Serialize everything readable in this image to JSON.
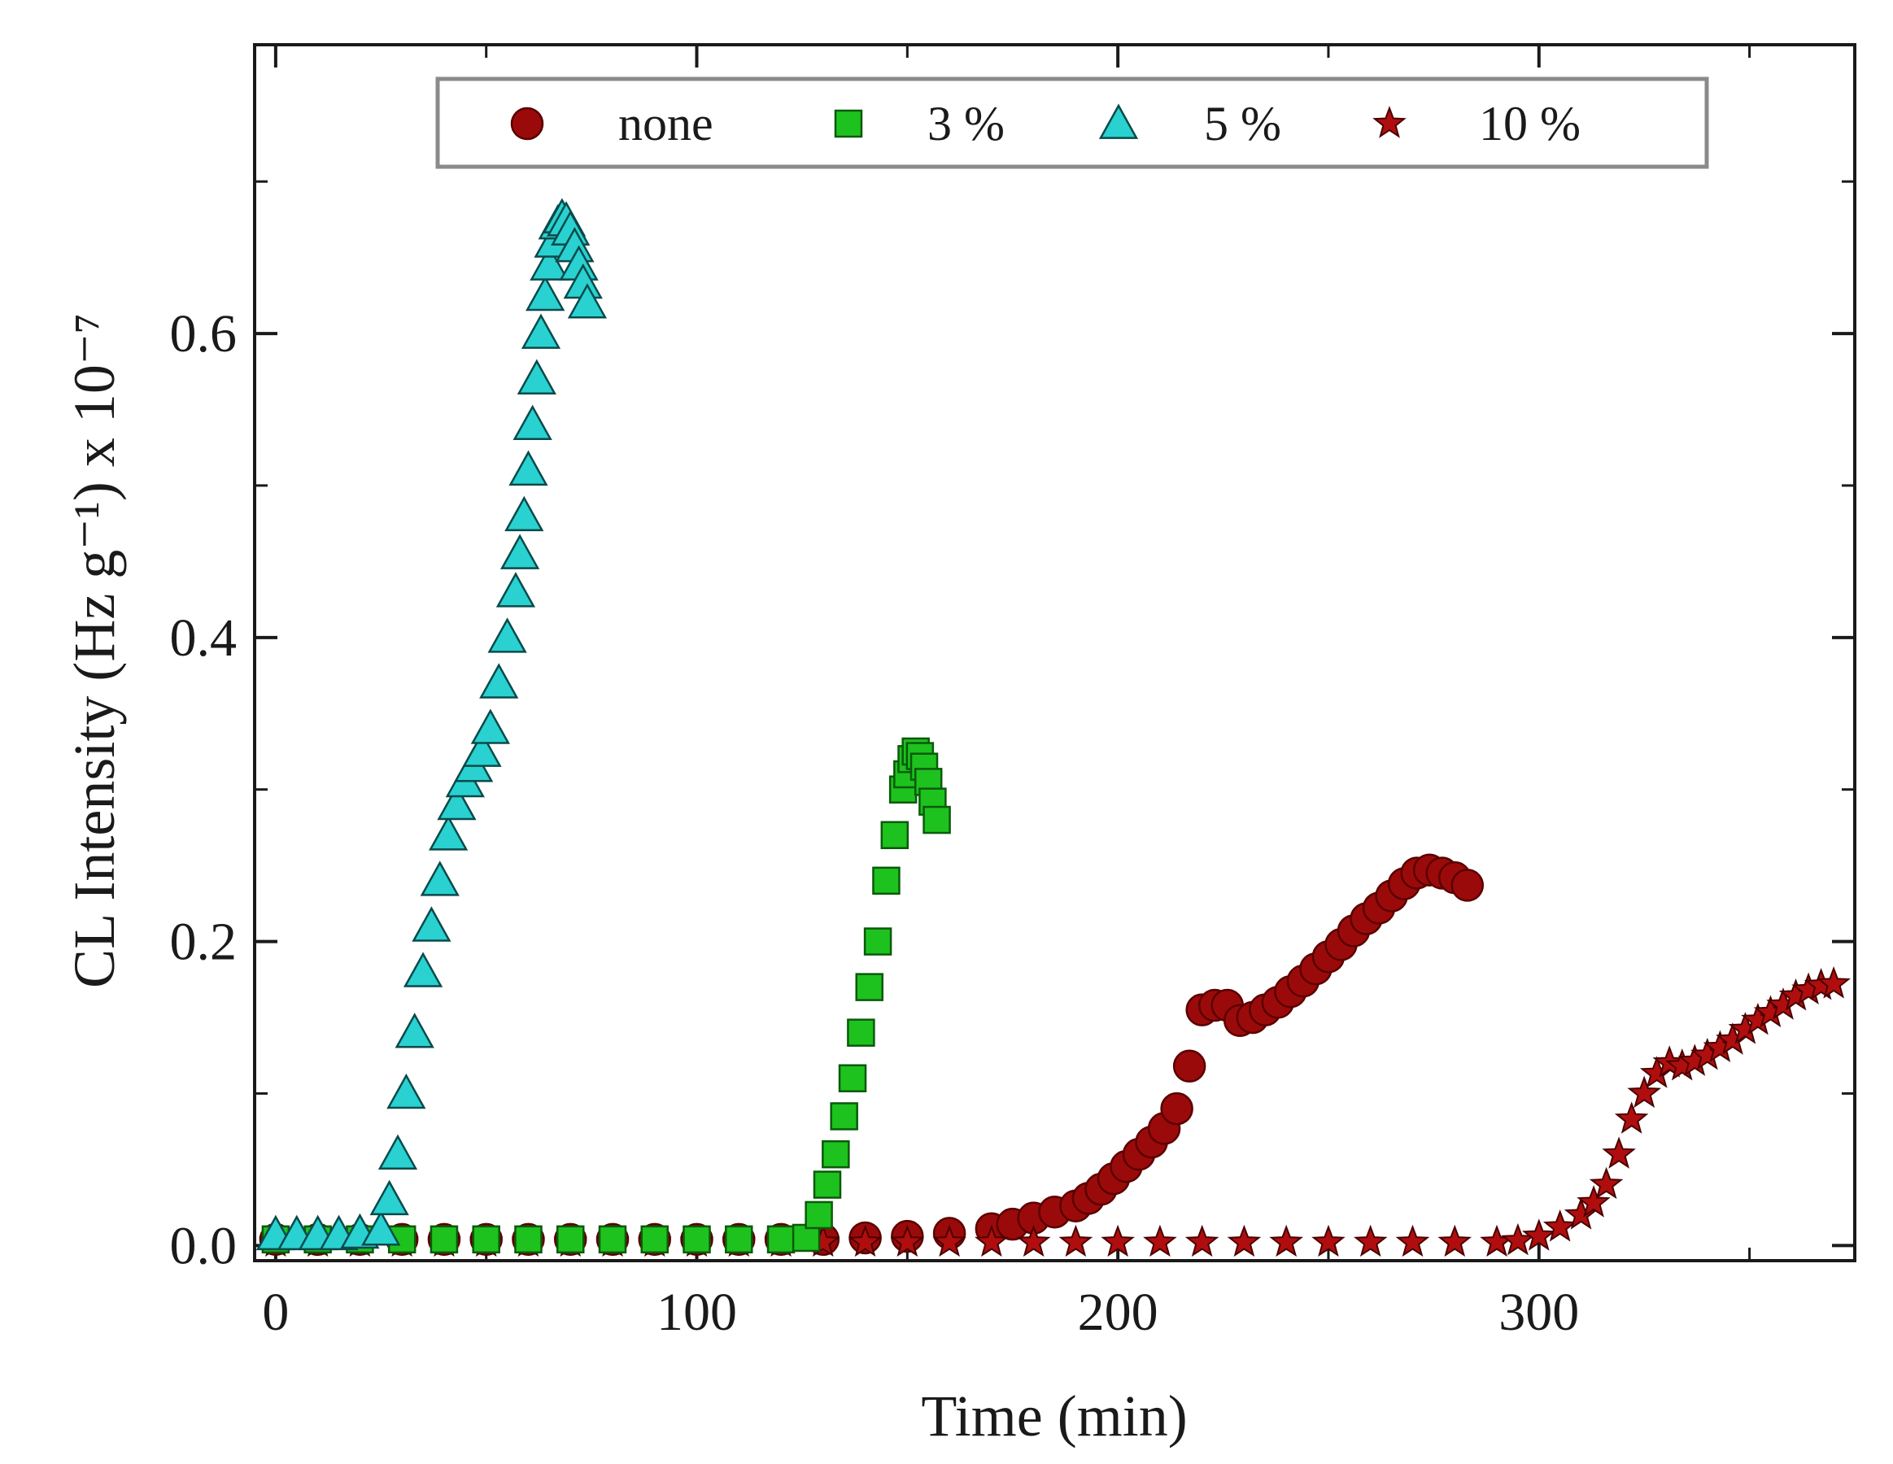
{
  "chart_data": {
    "type": "scatter",
    "xlabel": "Time (min)",
    "ylabel": "CL Intensity (Hz g⁻¹) x 10⁻⁷",
    "xlim": [
      -5,
      375
    ],
    "ylim": [
      -0.01,
      0.79
    ],
    "xticks": [
      0,
      100,
      200,
      300
    ],
    "xtick_labels": [
      "0",
      "100",
      "200",
      "300"
    ],
    "yticks": [
      0.0,
      0.2,
      0.4,
      0.6
    ],
    "ytick_labels": [
      "0.0",
      "0.2",
      "0.4",
      "0.6"
    ],
    "legend_position": "top",
    "series": [
      {
        "name": "none",
        "marker": "circle",
        "color": "#9b0a0a",
        "x": [
          0,
          10,
          20,
          30,
          40,
          50,
          60,
          70,
          80,
          90,
          100,
          110,
          120,
          130,
          140,
          150,
          160,
          170,
          175,
          180,
          185,
          190,
          193,
          196,
          199,
          202,
          205,
          208,
          211,
          214,
          217,
          220,
          223,
          226,
          229,
          232,
          235,
          238,
          241,
          244,
          247,
          250,
          253,
          256,
          259,
          262,
          265,
          268,
          271,
          274,
          277,
          280,
          283
        ],
        "y": [
          0.004,
          0.004,
          0.004,
          0.004,
          0.004,
          0.004,
          0.004,
          0.004,
          0.004,
          0.004,
          0.004,
          0.004,
          0.004,
          0.004,
          0.005,
          0.006,
          0.008,
          0.011,
          0.014,
          0.018,
          0.022,
          0.026,
          0.031,
          0.037,
          0.044,
          0.052,
          0.06,
          0.068,
          0.077,
          0.09,
          0.118,
          0.155,
          0.158,
          0.158,
          0.148,
          0.15,
          0.155,
          0.16,
          0.167,
          0.174,
          0.182,
          0.19,
          0.198,
          0.207,
          0.215,
          0.222,
          0.23,
          0.238,
          0.245,
          0.247,
          0.245,
          0.242,
          0.237
        ]
      },
      {
        "name": "3 %",
        "marker": "square",
        "color": "#1ec21e",
        "x": [
          0,
          10,
          20,
          30,
          40,
          50,
          60,
          70,
          80,
          90,
          100,
          110,
          120,
          126,
          129,
          131,
          133,
          135,
          137,
          139,
          141,
          143,
          145,
          147,
          149,
          150,
          151,
          152,
          153,
          154,
          155,
          156,
          157
        ],
        "y": [
          0.004,
          0.004,
          0.004,
          0.004,
          0.004,
          0.004,
          0.004,
          0.004,
          0.004,
          0.004,
          0.004,
          0.004,
          0.004,
          0.005,
          0.02,
          0.04,
          0.06,
          0.085,
          0.11,
          0.14,
          0.17,
          0.2,
          0.24,
          0.27,
          0.3,
          0.31,
          0.32,
          0.325,
          0.322,
          0.315,
          0.305,
          0.292,
          0.28
        ]
      },
      {
        "name": "5 %",
        "marker": "triangle",
        "color": "#2ad1d1",
        "x": [
          0,
          5,
          10,
          15,
          20,
          25,
          27,
          29,
          31,
          33,
          35,
          37,
          39,
          41,
          43,
          45,
          47,
          49,
          51,
          53,
          55,
          57,
          58,
          59,
          60,
          61,
          62,
          63,
          64,
          65,
          66,
          67,
          68,
          69,
          70,
          71,
          72,
          73,
          74
        ],
        "y": [
          0.007,
          0.007,
          0.007,
          0.007,
          0.008,
          0.01,
          0.03,
          0.06,
          0.1,
          0.14,
          0.18,
          0.21,
          0.24,
          0.27,
          0.29,
          0.305,
          0.315,
          0.325,
          0.34,
          0.37,
          0.4,
          0.43,
          0.455,
          0.48,
          0.51,
          0.54,
          0.57,
          0.6,
          0.625,
          0.645,
          0.66,
          0.672,
          0.676,
          0.674,
          0.668,
          0.657,
          0.645,
          0.633,
          0.62
        ]
      },
      {
        "name": "10 %",
        "marker": "star",
        "color": "#b00e0e",
        "x": [
          0,
          10,
          20,
          30,
          40,
          50,
          60,
          70,
          80,
          90,
          100,
          110,
          120,
          130,
          140,
          150,
          160,
          170,
          180,
          190,
          200,
          210,
          220,
          230,
          240,
          250,
          260,
          270,
          280,
          290,
          295,
          300,
          305,
          310,
          313,
          316,
          319,
          322,
          325,
          328,
          331,
          334,
          337,
          340,
          343,
          346,
          349,
          352,
          355,
          358,
          361,
          364,
          367,
          370
        ],
        "y": [
          0.002,
          0.002,
          0.002,
          0.002,
          0.002,
          0.002,
          0.002,
          0.002,
          0.002,
          0.002,
          0.002,
          0.002,
          0.002,
          0.002,
          0.002,
          0.002,
          0.002,
          0.002,
          0.002,
          0.002,
          0.002,
          0.002,
          0.002,
          0.002,
          0.002,
          0.002,
          0.002,
          0.002,
          0.002,
          0.002,
          0.003,
          0.006,
          0.012,
          0.02,
          0.028,
          0.04,
          0.06,
          0.083,
          0.1,
          0.113,
          0.12,
          0.118,
          0.121,
          0.125,
          0.13,
          0.135,
          0.142,
          0.148,
          0.153,
          0.158,
          0.164,
          0.168,
          0.171,
          0.172
        ]
      }
    ]
  }
}
